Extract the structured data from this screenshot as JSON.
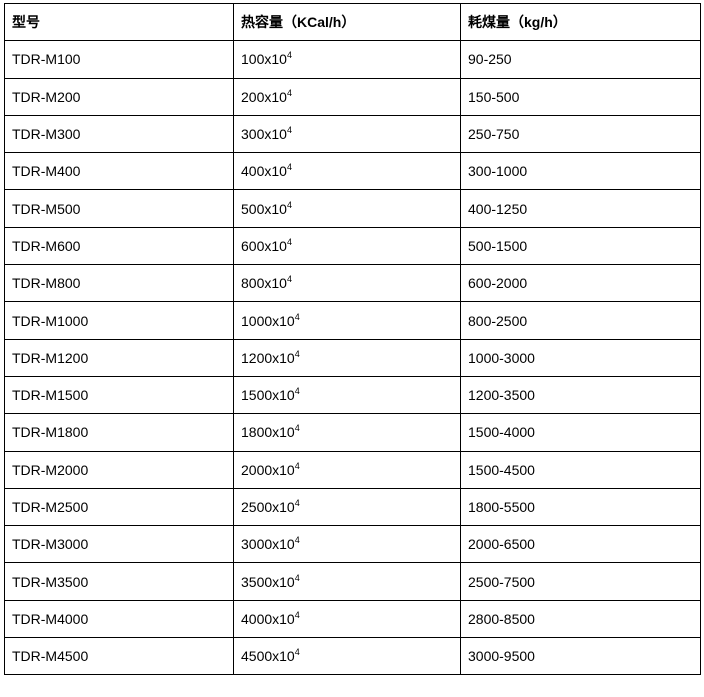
{
  "headers": [
    "型号",
    "热容量（KCal/h）",
    "耗煤量（kg/h）"
  ],
  "rows": [
    {
      "model": "TDR-M100",
      "capacity": "100x10",
      "exp": "4",
      "coal": "90-250"
    },
    {
      "model": "TDR-M200",
      "capacity": "200x10",
      "exp": "4",
      "coal": "150-500"
    },
    {
      "model": "TDR-M300",
      "capacity": "300x10",
      "exp": "4",
      "coal": "250-750"
    },
    {
      "model": "TDR-M400",
      "capacity": "400x10",
      "exp": "4",
      "coal": "300-1000"
    },
    {
      "model": "TDR-M500",
      "capacity": "500x10",
      "exp": "4",
      "coal": "400-1250"
    },
    {
      "model": "TDR-M600",
      "capacity": "600x10",
      "exp": "4",
      "coal": "500-1500"
    },
    {
      "model": "TDR-M800",
      "capacity": "800x10",
      "exp": "4",
      "coal": "600-2000"
    },
    {
      "model": "TDR-M1000",
      "capacity": "1000x10",
      "exp": "4",
      "coal": "800-2500"
    },
    {
      "model": "TDR-M1200",
      "capacity": "1200x10",
      "exp": "4",
      "coal": "1000-3000"
    },
    {
      "model": "TDR-M1500",
      "capacity": "1500x10",
      "exp": "4",
      "coal": "1200-3500"
    },
    {
      "model": "TDR-M1800",
      "capacity": "1800x10",
      "exp": "4",
      "coal": "1500-4000"
    },
    {
      "model": "TDR-M2000",
      "capacity": "2000x10",
      "exp": "4",
      "coal": "1500-4500"
    },
    {
      "model": "TDR-M2500",
      "capacity": "2500x10",
      "exp": "4",
      "coal": "1800-5500"
    },
    {
      "model": "TDR-M3000",
      "capacity": "3000x10",
      "exp": "4",
      "coal": "2000-6500"
    },
    {
      "model": "TDR-M3500",
      "capacity": "3500x10",
      "exp": "4",
      "coal": "2500-7500"
    },
    {
      "model": "TDR-M4000",
      "capacity": "4000x10",
      "exp": "4",
      "coal": "2800-8500"
    },
    {
      "model": "TDR-M4500",
      "capacity": "4500x10",
      "exp": "4",
      "coal": "3000-9500"
    }
  ]
}
